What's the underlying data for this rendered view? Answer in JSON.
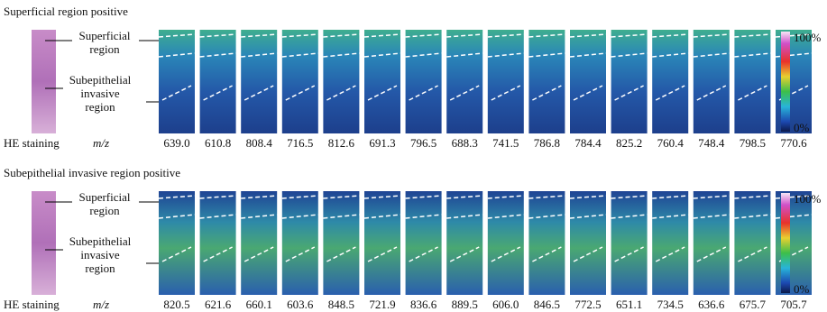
{
  "panels": [
    {
      "title": "Superficial region positive",
      "he_label": "HE staining",
      "mz_label": "m/z",
      "annotations": [
        [
          "Superficial",
          "region"
        ],
        [
          "Subepithelial",
          "invasive",
          "region"
        ]
      ],
      "mz": [
        "639.0",
        "610.8",
        "808.4",
        "716.5",
        "812.6",
        "691.3",
        "796.5",
        "688.3",
        "741.5",
        "786.8",
        "784.4",
        "825.2",
        "760.4",
        "748.4",
        "798.5",
        "770.6"
      ],
      "colorbar": [
        "100%",
        "0%"
      ]
    },
    {
      "title": "Subepithelial invasive region positive",
      "he_label": "HE staining",
      "mz_label": "m/z",
      "annotations": [
        [
          "Superficial",
          "region"
        ],
        [
          "Subepithelial",
          "invasive",
          "region"
        ]
      ],
      "mz": [
        "820.5",
        "621.6",
        "660.1",
        "603.6",
        "848.5",
        "721.9",
        "836.6",
        "889.5",
        "606.0",
        "846.5",
        "772.5",
        "651.1",
        "734.5",
        "636.6",
        "675.7",
        "705.7"
      ],
      "colorbar": [
        "100%",
        "0%"
      ]
    }
  ]
}
